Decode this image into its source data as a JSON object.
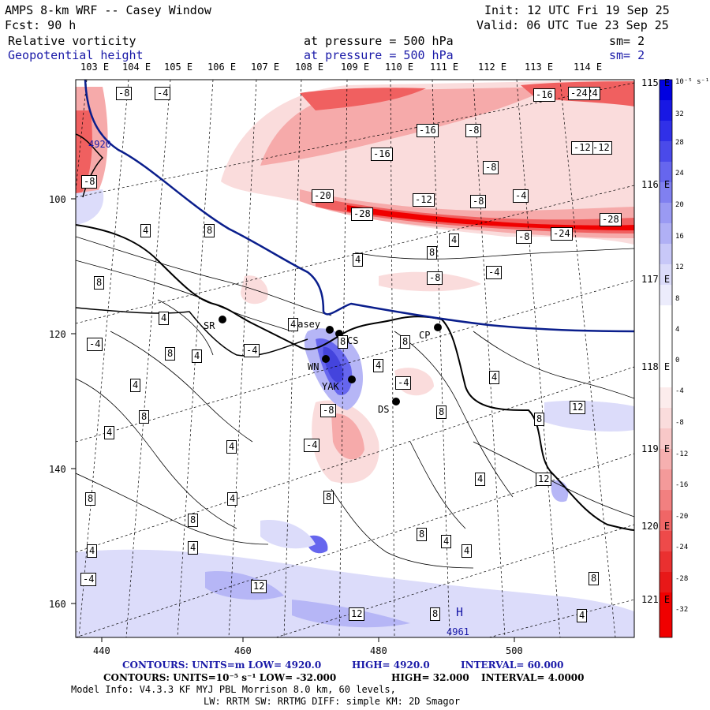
{
  "header": {
    "model_title": "AMPS 8-km WRF -- Casey Window",
    "init": "Init: 12 UTC Fri 19 Sep 25",
    "fcst": "Fcst:   90 h",
    "valid": "Valid: 06 UTC Tue 23 Sep 25",
    "field1_name": "Relative vorticity",
    "field1_level": "at pressure =  500 hPa",
    "field1_sm": "sm= 2",
    "field2_name": "Geopotential height",
    "field2_level": "at pressure =  500 hPa",
    "field2_sm": "sm= 2"
  },
  "top_longitudes": [
    "103 E",
    "104 E",
    "105 E",
    "106 E",
    "107 E",
    "108 E",
    "109 E",
    "110 E",
    "111 E",
    "112 E",
    "113 E",
    "114 E"
  ],
  "right_longitudes": [
    "115 E",
    "116 E",
    "117 E",
    "118 E",
    "119 E",
    "120 E",
    "121 E"
  ],
  "y_ticks": [
    "100",
    "120",
    "140",
    "160"
  ],
  "x_ticks": [
    "440",
    "460",
    "480",
    "500"
  ],
  "colorbar": {
    "unit_label": "10⁻⁵ s⁻¹",
    "labels": [
      "32",
      "28",
      "24",
      "20",
      "16",
      "12",
      "8",
      "4",
      "0",
      "-4",
      "-8",
      "-12",
      "-16",
      "-20",
      "-24",
      "-28",
      "-32"
    ],
    "colors": {
      "deep_blue": "#0000e0",
      "mid_blue": "#6666ee",
      "light_blue": "#b6b6f6",
      "faint_blue": "#dcdcfa",
      "faint_red": "#fadcdc",
      "light_red": "#f6aaaa",
      "mid_red": "#f06060",
      "deep_red": "#f00000"
    }
  },
  "stations": [
    {
      "name": "SR"
    },
    {
      "name": "Casey"
    },
    {
      "name": "CS"
    },
    {
      "name": "WN"
    },
    {
      "name": "YAK"
    },
    {
      "name": "DS"
    },
    {
      "name": "CP"
    }
  ],
  "highs": [
    {
      "label": "H",
      "value": "4961"
    }
  ],
  "height_contour_label": "4920",
  "contour_labels": {
    "vorticity": [
      "-8",
      "-4",
      "-24",
      "-16",
      "-24",
      "-16",
      "-8",
      "-16",
      "-12",
      "-8",
      "-12",
      "-4",
      "-8",
      "-20",
      "-28",
      "-12",
      "-8",
      "-28",
      "-24",
      "-8",
      "-4",
      "4",
      "8",
      "4",
      "8",
      "4",
      "-8",
      "-4",
      "8",
      "4",
      "4",
      "8",
      "8",
      "4",
      "-4",
      "4",
      "8",
      "4",
      "4",
      "8",
      "8",
      "4",
      "-4",
      "-8",
      "-4",
      "4",
      "4",
      "12",
      "8",
      "8",
      "4",
      "8",
      "8",
      "4",
      "4",
      "8",
      "4",
      "-4",
      "12",
      "12",
      "8",
      "8",
      "4",
      "12",
      "4"
    ]
  },
  "footer": {
    "line1_contours": "CONTOURS:  UNITS=m  LOW=  4920.0",
    "line1_high": "HIGH=  4920.0",
    "line1_interval": "INTERVAL=   60.000",
    "line2_contours": "CONTOURS:  UNITS=10⁻⁵ s⁻¹  LOW=  -32.000",
    "line2_high": "HIGH=  32.000",
    "line2_interval": "INTERVAL=   4.0000",
    "line3": "Model Info: V4.3.3    KF      MYJ PBL  Morrison         8.0 km,  60 levels,",
    "line4": "LW: RRTM SW: RRTMG    DIFF: simple KM: 2D Smagor"
  }
}
